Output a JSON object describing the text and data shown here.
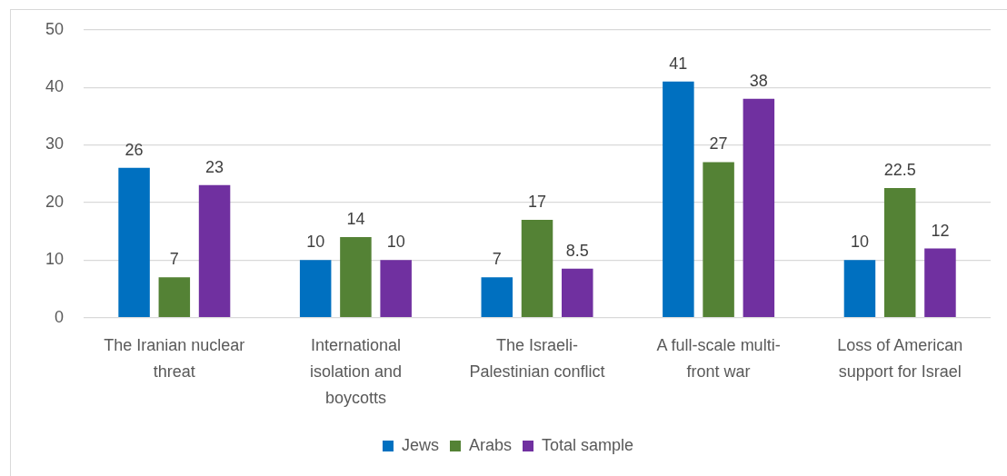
{
  "chart_data": {
    "type": "bar",
    "categories": [
      "The Iranian nuclear threat",
      "International isolation and boycotts",
      "The Israeli-Palestinian conflict",
      "A full-scale multi-front war",
      "Loss of American support for Israel"
    ],
    "series": [
      {
        "name": "Jews",
        "color": "#0070c0",
        "values": [
          26,
          10,
          7,
          41,
          10
        ]
      },
      {
        "name": "Arabs",
        "color": "#548235",
        "values": [
          7,
          14,
          17,
          27,
          22.5
        ]
      },
      {
        "name": "Total sample",
        "color": "#7030a0",
        "values": [
          23,
          10,
          8.5,
          38,
          12
        ]
      }
    ],
    "ylim": [
      0,
      50
    ],
    "yticks": [
      0,
      10,
      20,
      30,
      40,
      50
    ],
    "grid": "y",
    "legend": "bottom",
    "data_labels": true
  }
}
